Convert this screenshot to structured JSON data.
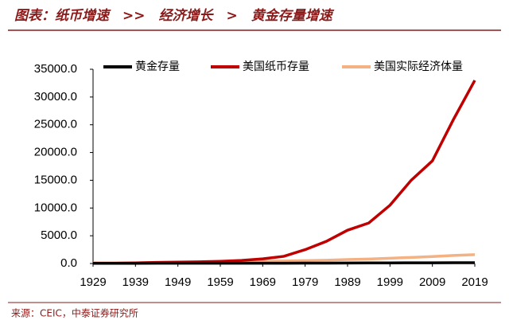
{
  "chart_data": {
    "type": "line",
    "title": "图表：纸币增速　>>　经济增长　>　黄金存量增速",
    "source": "来源：CEIC，中泰证券研究所",
    "x": [
      1929,
      1934,
      1939,
      1944,
      1949,
      1954,
      1959,
      1964,
      1969,
      1974,
      1979,
      1984,
      1989,
      1994,
      1999,
      2004,
      2009,
      2014,
      2019
    ],
    "series": [
      {
        "name": "黄金存量",
        "color": "#000000",
        "values": [
          30,
          30,
          40,
          50,
          50,
          50,
          50,
          50,
          50,
          60,
          70,
          80,
          90,
          100,
          110,
          120,
          130,
          140,
          150
        ]
      },
      {
        "name": "美国纸币存量",
        "color": "#c00000",
        "values": [
          50,
          50,
          100,
          200,
          250,
          300,
          400,
          550,
          850,
          1300,
          2500,
          4000,
          6000,
          7300,
          10500,
          15000,
          18500,
          26000,
          33000
        ]
      },
      {
        "name": "美国实际经济体量",
        "color": "#f4b183",
        "values": [
          100,
          90,
          110,
          180,
          200,
          230,
          270,
          330,
          400,
          450,
          520,
          600,
          720,
          800,
          950,
          1100,
          1250,
          1450,
          1600
        ]
      }
    ],
    "xlim": [
      1929,
      2019
    ],
    "xticks": [
      1929,
      1939,
      1949,
      1959,
      1969,
      1979,
      1989,
      1999,
      2009,
      2019
    ],
    "ylim": [
      0,
      35000
    ],
    "yticks": [
      {
        "value": 0,
        "label": "0.0"
      },
      {
        "value": 5000,
        "label": "5000.0"
      },
      {
        "value": 10000,
        "label": "10000.0"
      },
      {
        "value": 15000,
        "label": "15000.0"
      },
      {
        "value": 20000,
        "label": "20000.0"
      },
      {
        "value": 25000,
        "label": "25000.0"
      },
      {
        "value": 30000,
        "label": "30000.0"
      },
      {
        "value": 35000,
        "label": "35000.0"
      }
    ],
    "legend": "top"
  }
}
